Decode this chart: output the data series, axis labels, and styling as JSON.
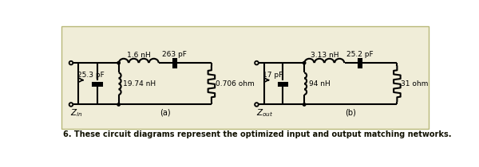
{
  "bg_color": "#f0edd8",
  "border_color": "#b8b878",
  "line_color": "#000000",
  "fig_bg": "#ffffff",
  "caption": "6. These circuit diagrams represent the optimized input and output matching networks.",
  "circuit_a": {
    "label": "(a)",
    "zin_label": "Z_in",
    "L1_label": "1.6 nH",
    "C1_label": "263 pF",
    "C2_label": "25.3 pF",
    "L2_label": "19.74 nH",
    "R1_label": "0.706 ohm"
  },
  "circuit_b": {
    "label": "(b)",
    "zout_label": "Z_out",
    "L1_label": "3.13 nH",
    "C1_label": "25.2 pF",
    "C2_label": "17 pF",
    "L2_label": "94 nH",
    "R1_label": "31 ohm"
  }
}
